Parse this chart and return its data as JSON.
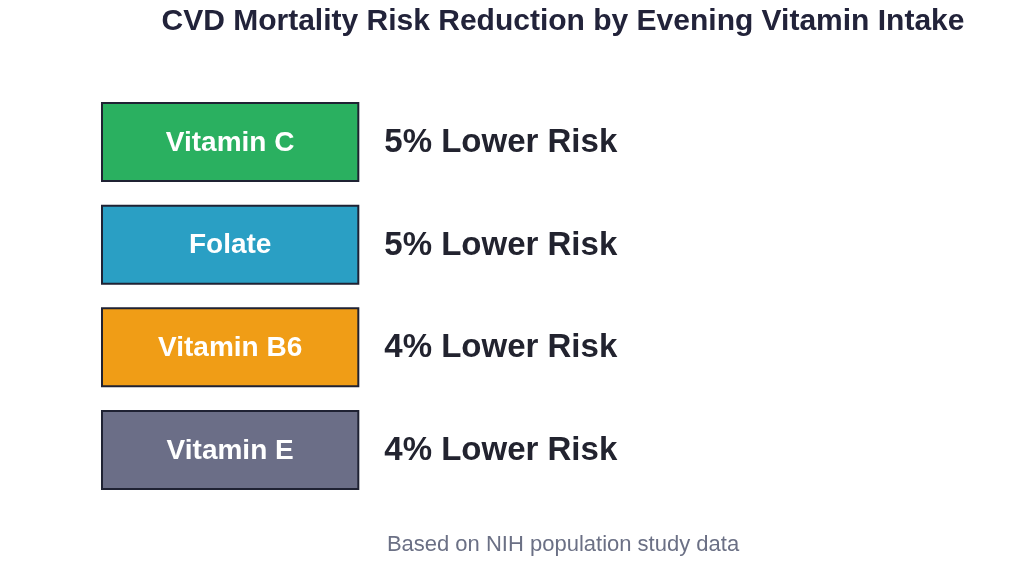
{
  "chart_data": {
    "type": "other",
    "title": "CVD Mortality Risk Reduction by Evening Vitamin Intake",
    "categories": [
      "Vitamin C",
      "Folate",
      "Vitamin B6",
      "Vitamin E"
    ],
    "values": [
      5,
      5,
      4,
      4
    ],
    "value_labels": [
      "5% Lower Risk",
      "5% Lower Risk",
      "4% Lower Risk",
      "4% Lower Risk"
    ],
    "colors": [
      "#2ab060",
      "#2a9fc4",
      "#f09d16",
      "#6b6e87"
    ],
    "annotations": [
      "Based on NIH population study data"
    ]
  }
}
